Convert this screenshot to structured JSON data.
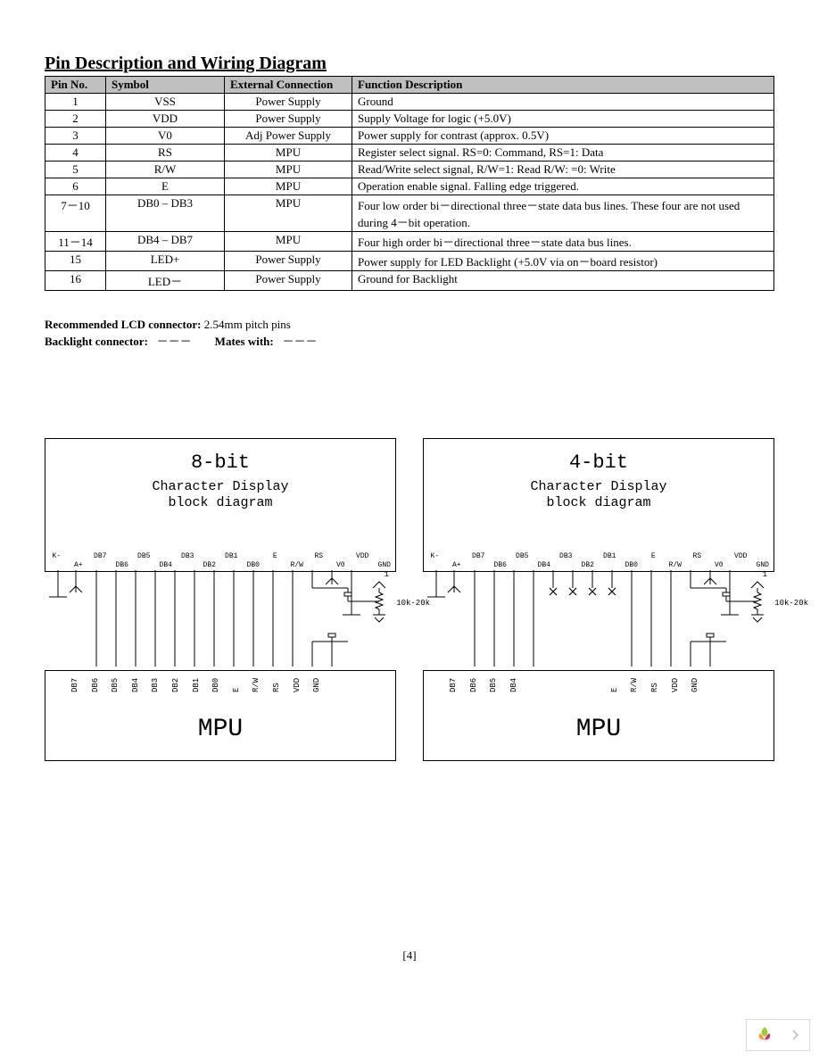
{
  "title": "Pin Description and Wiring Diagram",
  "table": {
    "headers": {
      "pinno": "Pin No.",
      "symbol": "Symbol",
      "ext": "External Connection",
      "func": "Function Description"
    },
    "rows": [
      {
        "pinno": "1",
        "symbol": "VSS",
        "ext": "Power Supply",
        "func": "Ground"
      },
      {
        "pinno": "2",
        "symbol": "VDD",
        "ext": "Power Supply",
        "func": "Supply Voltage for logic (+5.0V)"
      },
      {
        "pinno": "3",
        "symbol": "V0",
        "ext": "Adj Power Supply",
        "func": "Power supply for contrast (approx. 0.5V)"
      },
      {
        "pinno": "4",
        "symbol": "RS",
        "ext": "MPU",
        "func": "Register select    signal. RS=0: Command, RS=1: Data"
      },
      {
        "pinno": "5",
        "symbol": "R/W",
        "ext": "MPU",
        "func": "Read/Write select signal, R/W=1: Read R/W: =0: Write"
      },
      {
        "pinno": "6",
        "symbol": "E",
        "ext": "MPU",
        "func": "Operation enable signal. Falling edge triggered."
      },
      {
        "pinno": "7－10",
        "symbol": "DB0 – DB3",
        "ext": "MPU",
        "func": "Four low order bi－directional three－state data bus lines.  These four are not used during 4－bit operation."
      },
      {
        "pinno": "11－14",
        "symbol": "DB4 – DB7",
        "ext": "MPU",
        "func": "Four high order bi－directional three－state data bus lines."
      },
      {
        "pinno": "15",
        "symbol": "LED+",
        "ext": "Power Supply",
        "func": "Power supply for LED Backlight (+5.0V via on－board resistor)"
      },
      {
        "pinno": "16",
        "symbol": "LED－",
        "ext": "Power Supply",
        "func": "Ground for Backlight"
      }
    ]
  },
  "notes": {
    "rec_lbl": "Recommended LCD connector:",
    "rec_val": "2.54mm pitch pins",
    "bl_lbl": "Backlight connector:",
    "bl_val": "－－－",
    "mates_lbl": "Mates with:",
    "mates_val": "－－－"
  },
  "diagram8": {
    "title": "8-bit",
    "sub1": "Character Display",
    "sub2": "block diagram",
    "lcd_pins_top": [
      "K-",
      "",
      "DB7",
      "",
      "DB5",
      "",
      "DB3",
      "",
      "DB1",
      "",
      "E",
      "",
      "RS",
      "",
      "VDD",
      ""
    ],
    "lcd_pins_bot": [
      "",
      "A+",
      "",
      "DB6",
      "",
      "DB4",
      "",
      "DB2",
      "",
      "DB0",
      "",
      "R/W",
      "",
      "V0",
      "",
      "GND"
    ],
    "mpu_pins": [
      "DB7",
      "DB6",
      "DB5",
      "DB4",
      "DB3",
      "DB2",
      "DB1",
      "DB0",
      "E",
      "R/W",
      "RS",
      "VDD",
      "GND"
    ],
    "mpu": "MPU",
    "res": "10k-20k",
    "pin1": "1"
  },
  "diagram4": {
    "title": "4-bit",
    "sub1": "Character Display",
    "sub2": "block diagram",
    "lcd_pins_top": [
      "K-",
      "",
      "DB7",
      "",
      "DB5",
      "",
      "DB3",
      "",
      "DB1",
      "",
      "E",
      "",
      "RS",
      "",
      "VDD",
      ""
    ],
    "lcd_pins_bot": [
      "",
      "A+",
      "",
      "DB6",
      "",
      "DB4",
      "",
      "DB2",
      "",
      "DB0",
      "",
      "R/W",
      "",
      "V0",
      "",
      "GND"
    ],
    "mpu_pins": [
      "DB7",
      "DB6",
      "DB5",
      "DB4",
      "",
      "",
      "",
      "",
      "E",
      "R/W",
      "RS",
      "VDD",
      "GND"
    ],
    "mpu": "MPU",
    "res": "10k-20k",
    "pin1": "1"
  },
  "page_num": "[4]",
  "colors": {
    "header_bg": "#c0c0c0",
    "border": "#000000",
    "text": "#000000"
  }
}
